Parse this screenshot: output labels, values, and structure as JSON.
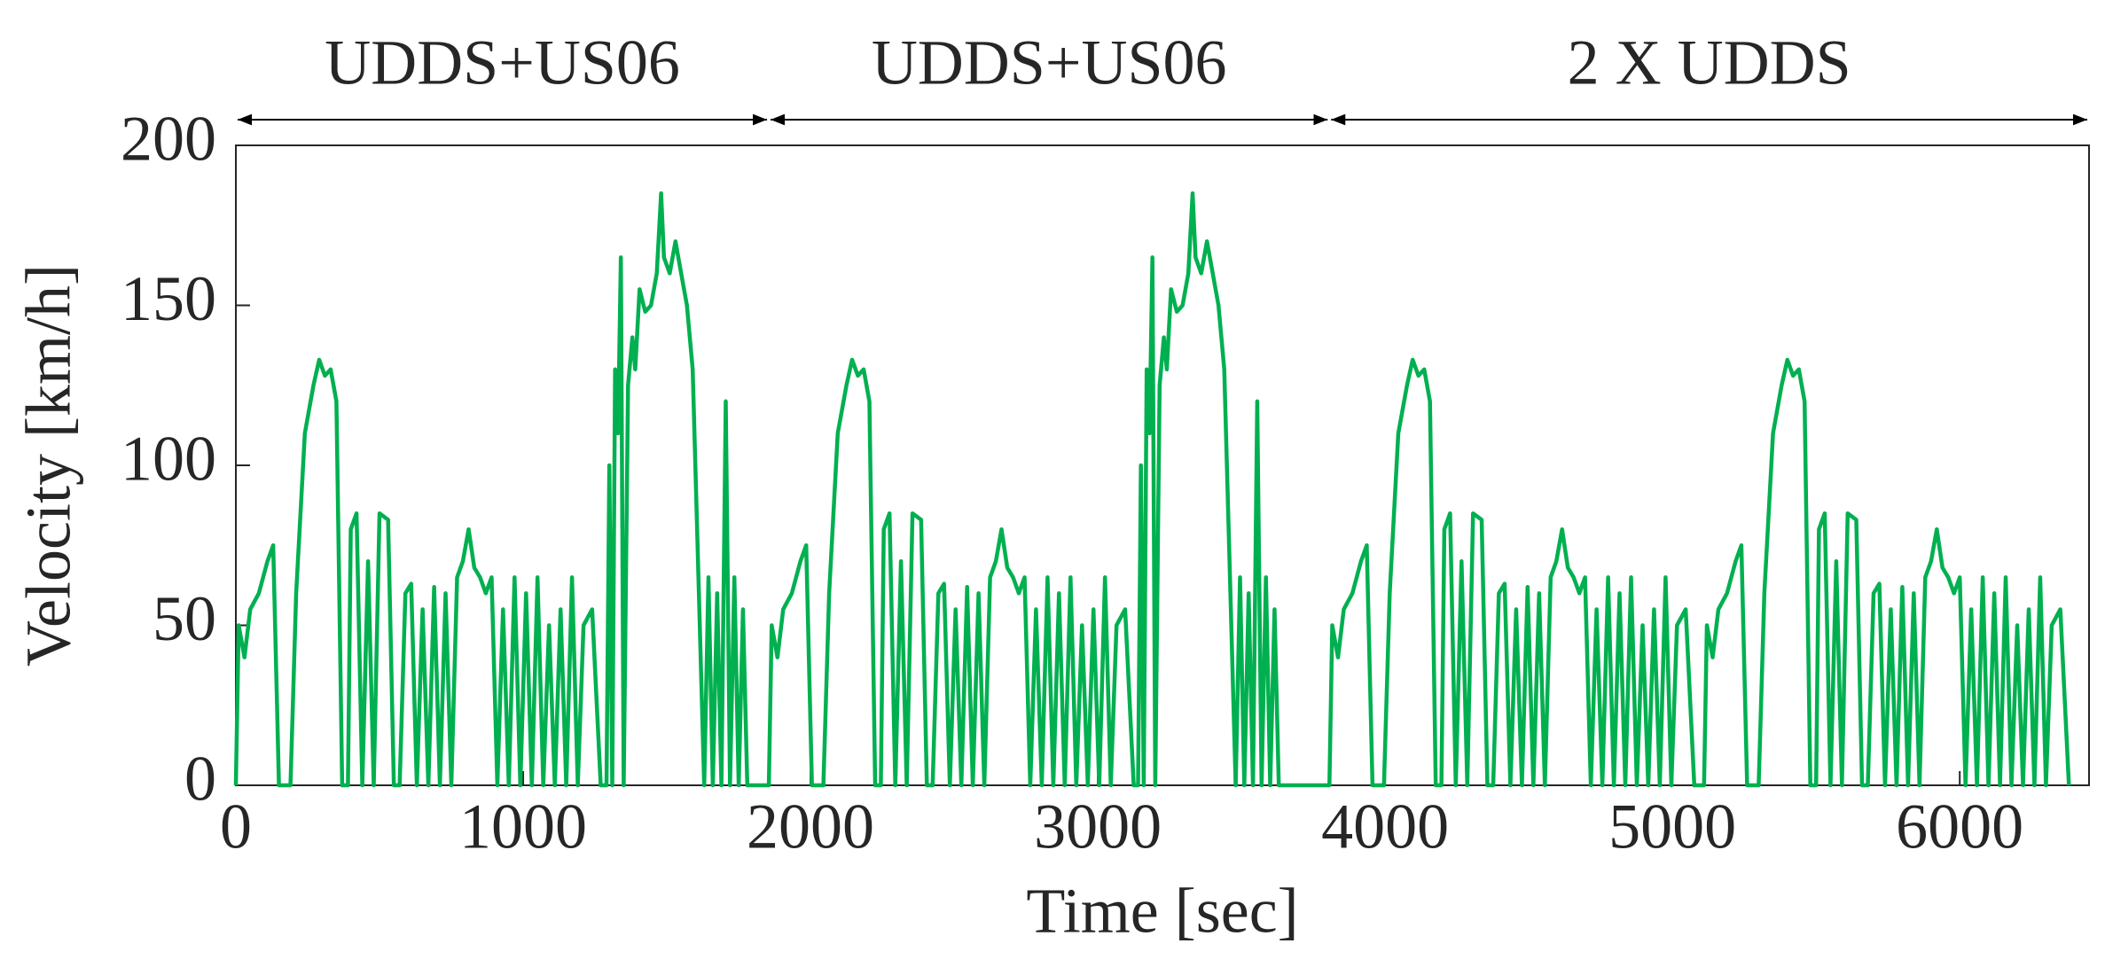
{
  "chart_data": {
    "type": "line",
    "xlabel": "Time [sec]",
    "ylabel": "Velocity [km/h]",
    "annotations": [
      {
        "text": "UDDS+US06",
        "x": [
          0,
          1855
        ]
      },
      {
        "text": "UDDS+US06",
        "x": [
          1855,
          3806
        ]
      },
      {
        "text": "2 X UDDS",
        "x": [
          3806,
          6450
        ]
      }
    ],
    "color": "#00b050",
    "xlim": [
      0,
      6450
    ],
    "xticks": [
      0,
      1000,
      2000,
      3000,
      4000,
      5000,
      6000
    ],
    "ylim": [
      0,
      200
    ],
    "yticks": [
      0,
      50,
      100,
      150,
      200
    ],
    "grid": false,
    "x": [
      0,
      10,
      30,
      50,
      80,
      110,
      130,
      150,
      190,
      210,
      240,
      270,
      290,
      310,
      330,
      350,
      370,
      390,
      400,
      420,
      440,
      460,
      480,
      500,
      530,
      550,
      570,
      590,
      610,
      630,
      650,
      670,
      690,
      710,
      730,
      750,
      770,
      790,
      810,
      830,
      850,
      870,
      890,
      910,
      930,
      950,
      970,
      990,
      1010,
      1030,
      1050,
      1070,
      1090,
      1110,
      1130,
      1150,
      1170,
      1190,
      1210,
      1240,
      1270,
      1290,
      1300,
      1310,
      1320,
      1330,
      1340,
      1350,
      1365,
      1380,
      1390,
      1405,
      1425,
      1445,
      1465,
      1480,
      1490,
      1510,
      1530,
      1550,
      1570,
      1590,
      1630,
      1645,
      1660,
      1675,
      1690,
      1705,
      1720,
      1735,
      1750,
      1765,
      1780,
      1790,
      1855,
      1865,
      1885,
      1905,
      1935,
      1965,
      1985,
      2005,
      2045,
      2065,
      2095,
      2125,
      2145,
      2165,
      2185,
      2205,
      2225,
      2245,
      2255,
      2275,
      2295,
      2315,
      2335,
      2355,
      2385,
      2405,
      2425,
      2445,
      2465,
      2485,
      2505,
      2525,
      2545,
      2565,
      2585,
      2605,
      2625,
      2645,
      2665,
      2685,
      2705,
      2725,
      2745,
      2765,
      2785,
      2805,
      2825,
      2845,
      2865,
      2885,
      2905,
      2925,
      2945,
      2965,
      2985,
      3005,
      3025,
      3045,
      3065,
      3095,
      3125,
      3140,
      3150,
      3160,
      3170,
      3180,
      3190,
      3200,
      3215,
      3230,
      3240,
      3255,
      3275,
      3295,
      3315,
      3330,
      3340,
      3360,
      3380,
      3400,
      3420,
      3440,
      3480,
      3495,
      3510,
      3525,
      3540,
      3555,
      3570,
      3585,
      3600,
      3615,
      3630,
      3640,
      3806,
      3816,
      3836,
      3856,
      3886,
      3916,
      3936,
      3956,
      3996,
      4016,
      4046,
      4076,
      4096,
      4116,
      4136,
      4156,
      4176,
      4196,
      4206,
      4226,
      4246,
      4266,
      4286,
      4306,
      4336,
      4356,
      4376,
      4396,
      4416,
      4436,
      4456,
      4476,
      4496,
      4516,
      4536,
      4556,
      4576,
      4596,
      4616,
      4636,
      4656,
      4676,
      4696,
      4716,
      4736,
      4756,
      4776,
      4796,
      4816,
      4836,
      4856,
      4876,
      4896,
      4916,
      4936,
      4956,
      4976,
      4996,
      5016,
      5046,
      5076,
      5110,
      5120,
      5140,
      5160,
      5190,
      5220,
      5240,
      5260,
      5300,
      5320,
      5350,
      5380,
      5400,
      5420,
      5440,
      5460,
      5480,
      5500,
      5510,
      5530,
      5550,
      5570,
      5590,
      5610,
      5640,
      5660,
      5680,
      5700,
      5720,
      5740,
      5760,
      5780,
      5800,
      5820,
      5840,
      5860,
      5880,
      5900,
      5920,
      5940,
      5960,
      5980,
      6000,
      6020,
      6040,
      6060,
      6080,
      6100,
      6120,
      6140,
      6160,
      6180,
      6200,
      6220,
      6240,
      6260,
      6280,
      6300,
      6320,
      6350,
      6380
    ],
    "values": [
      0,
      50,
      40,
      55,
      60,
      70,
      75,
      0,
      0,
      60,
      110,
      125,
      133,
      128,
      130,
      120,
      0,
      0,
      80,
      85,
      0,
      70,
      0,
      85,
      83,
      0,
      0,
      60,
      63,
      0,
      55,
      0,
      62,
      0,
      60,
      0,
      65,
      70,
      80,
      68,
      65,
      60,
      65,
      0,
      55,
      0,
      65,
      0,
      60,
      0,
      65,
      0,
      50,
      0,
      55,
      0,
      65,
      0,
      50,
      55,
      0,
      0,
      100,
      0,
      130,
      110,
      165,
      0,
      125,
      140,
      130,
      155,
      148,
      150,
      160,
      185,
      165,
      160,
      170,
      160,
      150,
      130,
      0,
      65,
      0,
      60,
      0,
      120,
      0,
      65,
      0,
      55,
      0,
      0,
      0,
      50,
      40,
      55,
      60,
      70,
      75,
      0,
      0,
      60,
      110,
      125,
      133,
      128,
      130,
      120,
      0,
      0,
      80,
      85,
      0,
      70,
      0,
      85,
      83,
      0,
      0,
      60,
      63,
      0,
      55,
      0,
      62,
      0,
      60,
      0,
      65,
      70,
      80,
      68,
      65,
      60,
      65,
      0,
      55,
      0,
      65,
      0,
      60,
      0,
      65,
      0,
      50,
      0,
      55,
      0,
      65,
      0,
      50,
      55,
      0,
      0,
      100,
      0,
      130,
      110,
      165,
      0,
      125,
      140,
      130,
      155,
      148,
      150,
      160,
      185,
      165,
      160,
      170,
      160,
      150,
      130,
      0,
      65,
      0,
      60,
      0,
      120,
      0,
      65,
      0,
      55,
      0,
      0,
      0,
      50,
      40,
      55,
      60,
      70,
      75,
      0,
      0,
      60,
      110,
      125,
      133,
      128,
      130,
      120,
      0,
      0,
      80,
      85,
      0,
      70,
      0,
      85,
      83,
      0,
      0,
      60,
      63,
      0,
      55,
      0,
      62,
      0,
      60,
      0,
      65,
      70,
      80,
      68,
      65,
      60,
      65,
      0,
      55,
      0,
      65,
      0,
      60,
      0,
      65,
      0,
      50,
      0,
      55,
      0,
      65,
      0,
      50,
      55,
      0,
      0,
      50,
      40,
      55,
      60,
      70,
      75,
      0,
      0,
      60,
      110,
      125,
      133,
      128,
      130,
      120,
      0,
      0,
      80,
      85,
      0,
      70,
      0,
      85,
      83,
      0,
      0,
      60,
      63,
      0,
      55,
      0,
      62,
      0,
      60,
      0,
      65,
      70,
      80,
      68,
      65,
      60,
      65,
      0,
      55,
      0,
      65,
      0,
      60,
      0,
      65,
      0,
      50,
      0,
      55,
      0,
      65,
      0,
      50,
      55,
      0
    ]
  }
}
